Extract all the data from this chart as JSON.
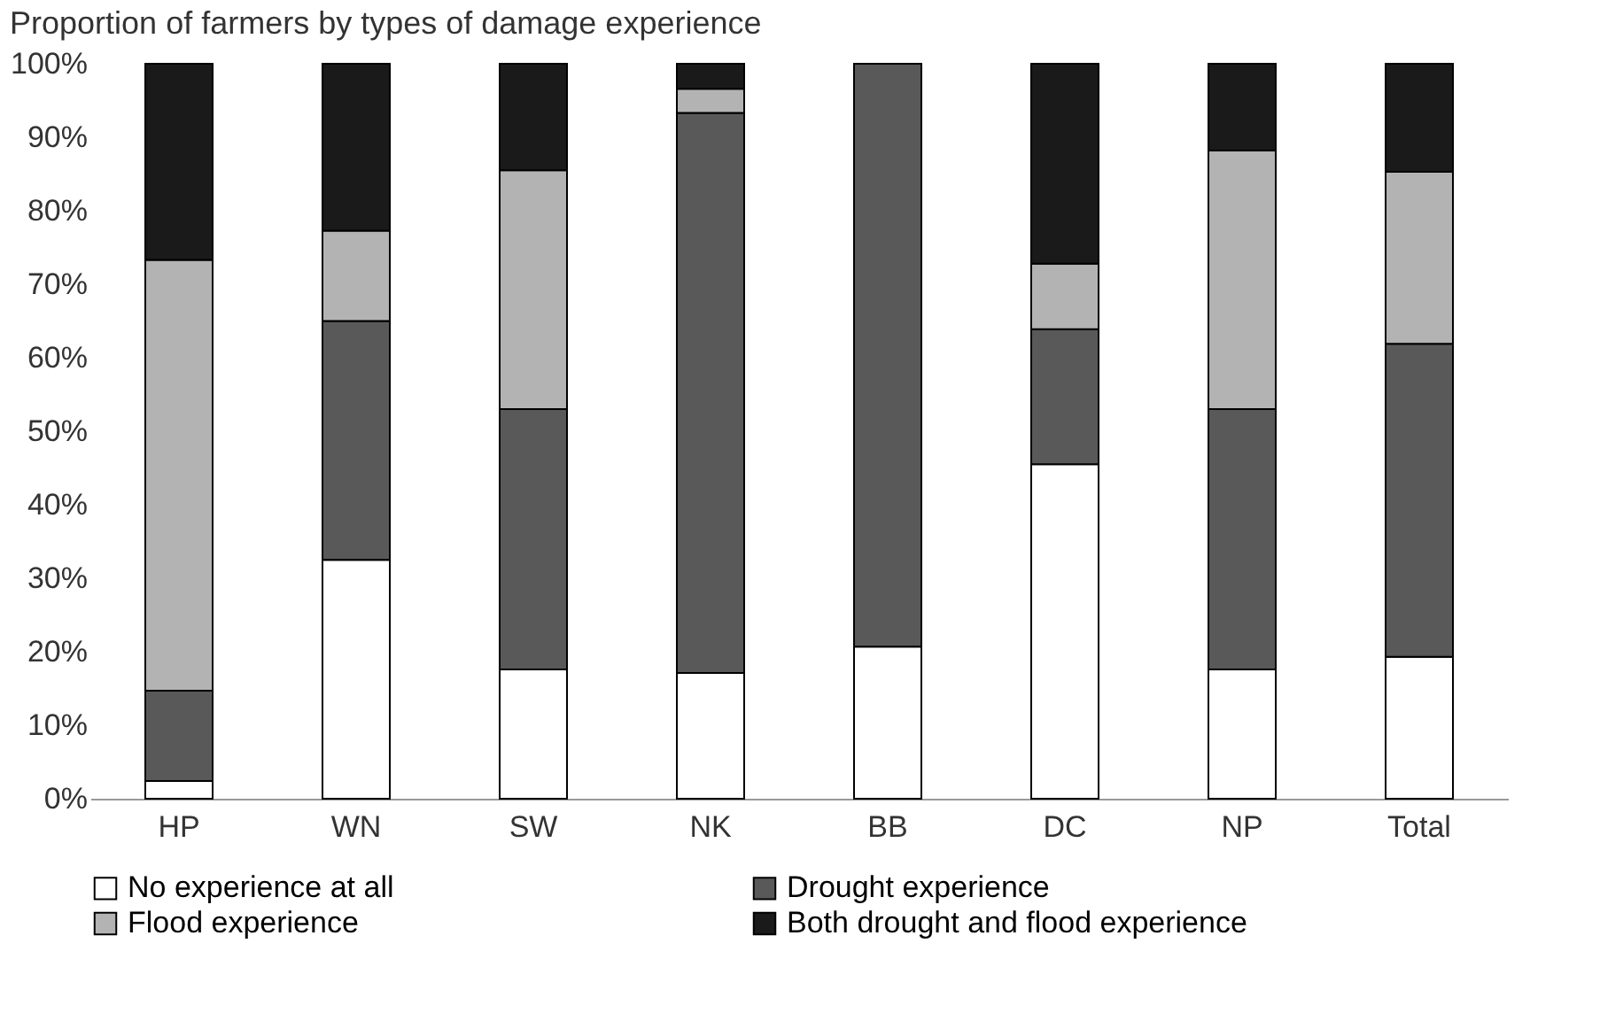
{
  "chart_data": {
    "type": "bar",
    "stacked": true,
    "title": "Proportion of farmers by types of damage experience",
    "categories": [
      "HP",
      "WN",
      "SW",
      "NK",
      "BB",
      "DC",
      "NP",
      "Total"
    ],
    "series": [
      {
        "name": "No experience at all",
        "color": "#ffffff",
        "values": [
          2.4,
          32.5,
          17.6,
          17.1,
          20.7,
          45.5,
          17.6,
          19.3
        ]
      },
      {
        "name": "Drought experience",
        "color": "#595959",
        "values": [
          12.3,
          32.5,
          35.4,
          76.2,
          79.3,
          18.4,
          35.4,
          42.6
        ]
      },
      {
        "name": "Flood experience",
        "color": "#b3b3b3",
        "values": [
          58.6,
          12.3,
          32.5,
          3.3,
          0,
          8.9,
          35.2,
          23.4
        ]
      },
      {
        "name": "Both drought and flood experience",
        "color": "#1a1a1a",
        "values": [
          26.7,
          22.7,
          14.5,
          3.4,
          0,
          27.2,
          11.8,
          14.7
        ]
      }
    ],
    "ylim": [
      0,
      100
    ],
    "yticks": [
      {
        "value": 0,
        "label": "0%"
      },
      {
        "value": 10,
        "label": "10%"
      },
      {
        "value": 20,
        "label": "20%"
      },
      {
        "value": 30,
        "label": "30%"
      },
      {
        "value": 40,
        "label": "40%"
      },
      {
        "value": 50,
        "label": "50%"
      },
      {
        "value": 60,
        "label": "60%"
      },
      {
        "value": 70,
        "label": "70%"
      },
      {
        "value": 80,
        "label": "80%"
      },
      {
        "value": 90,
        "label": "90%"
      },
      {
        "value": 100,
        "label": "100%"
      }
    ],
    "grid": false,
    "legend": "bottom"
  }
}
